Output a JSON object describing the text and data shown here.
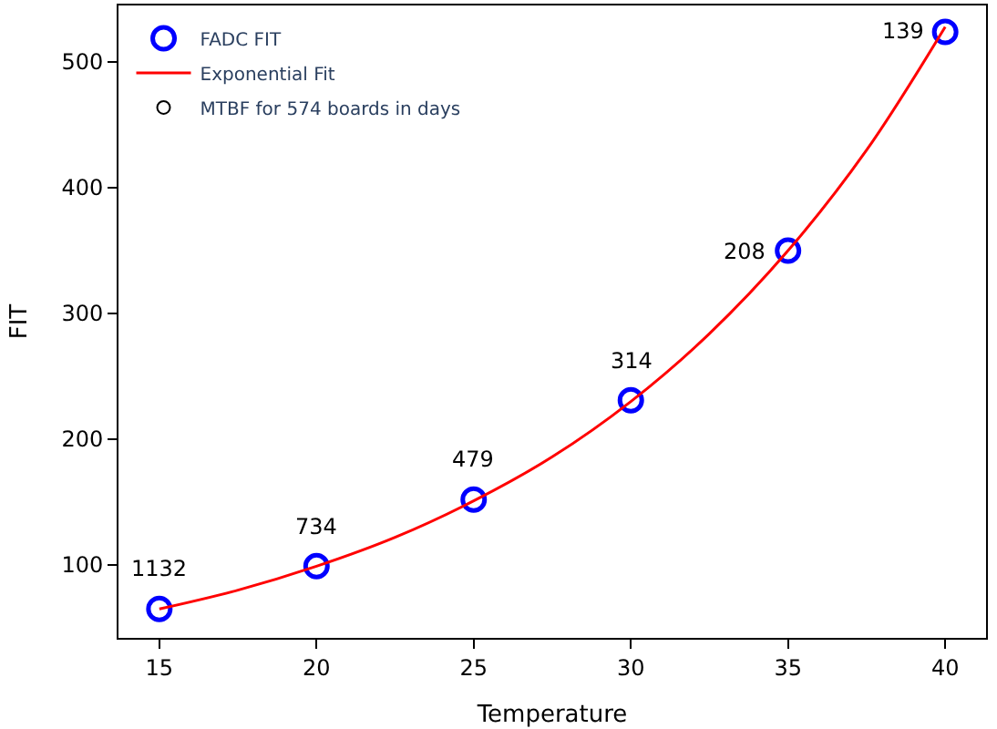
{
  "chart_data": {
    "type": "scatter",
    "xlabel": "Temperature",
    "ylabel": "FIT",
    "xlim": [
      13.7,
      41.3
    ],
    "ylim": [
      42,
      545
    ],
    "xticks": [
      15,
      20,
      25,
      30,
      35,
      40
    ],
    "yticks": [
      100,
      200,
      300,
      400,
      500
    ],
    "legend": "top left",
    "series": [
      {
        "name": "FADC FIT",
        "color": "#0000ff",
        "marker": "circle",
        "x": [
          15,
          20,
          25,
          30,
          35,
          40
        ],
        "values": [
          65,
          99,
          152,
          231,
          350,
          524
        ]
      },
      {
        "name": "Exponential Fit",
        "type": "line",
        "color": "#ff0000",
        "marker": "none",
        "x": [
          15,
          17.5,
          20,
          22.5,
          25,
          27.5,
          30,
          32.5,
          35,
          37.5,
          40
        ],
        "values": [
          65,
          80,
          99,
          122,
          151,
          186,
          230,
          284,
          350,
          430,
          528
        ]
      },
      {
        "name": "MTBF for 574 boards in days",
        "type": "scatter",
        "color": "#000000",
        "marker": "circle"
      }
    ],
    "annotations": [
      {
        "text": "1132",
        "x": 15,
        "y": 65
      },
      {
        "text": "734",
        "x": 20,
        "y": 99
      },
      {
        "text": "479",
        "x": 25,
        "y": 152
      },
      {
        "text": "314",
        "x": 30,
        "y": 231
      },
      {
        "text": "208",
        "x": 35,
        "y": 350
      },
      {
        "text": "139",
        "x": 40,
        "y": 524
      }
    ]
  }
}
